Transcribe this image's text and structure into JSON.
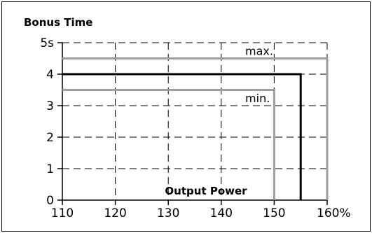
{
  "chart_data": {
    "type": "line",
    "ylabel": "Bonus Time",
    "xlabel": "Output Power",
    "xlim": [
      110,
      160
    ],
    "ylim": [
      0,
      5
    ],
    "x_ticks": [
      110,
      120,
      130,
      140,
      150,
      160
    ],
    "x_tick_labels": [
      "110",
      "120",
      "130",
      "140",
      "150",
      "160%"
    ],
    "y_ticks": [
      0,
      1,
      2,
      3,
      4,
      5
    ],
    "y_tick_labels": [
      "0",
      "1",
      "2",
      "3",
      "4",
      "5s"
    ],
    "grid": true,
    "series": [
      {
        "name": "max.",
        "color": "#9e9e9e",
        "width": 3,
        "points": [
          [
            110,
            4.5
          ],
          [
            160,
            4.5
          ],
          [
            160,
            0
          ]
        ]
      },
      {
        "color": "#000000",
        "width": 3,
        "points": [
          [
            110,
            4.0
          ],
          [
            155,
            4.0
          ],
          [
            155,
            0
          ]
        ]
      },
      {
        "name": "min.",
        "color": "#9e9e9e",
        "width": 3,
        "points": [
          [
            110,
            3.5
          ],
          [
            150,
            3.5
          ],
          [
            150,
            0
          ]
        ]
      }
    ],
    "annotations": [
      {
        "text": "max.",
        "x": 144,
        "y": 4.75
      },
      {
        "text": "min.",
        "x": 144,
        "y": 3.25
      }
    ]
  }
}
